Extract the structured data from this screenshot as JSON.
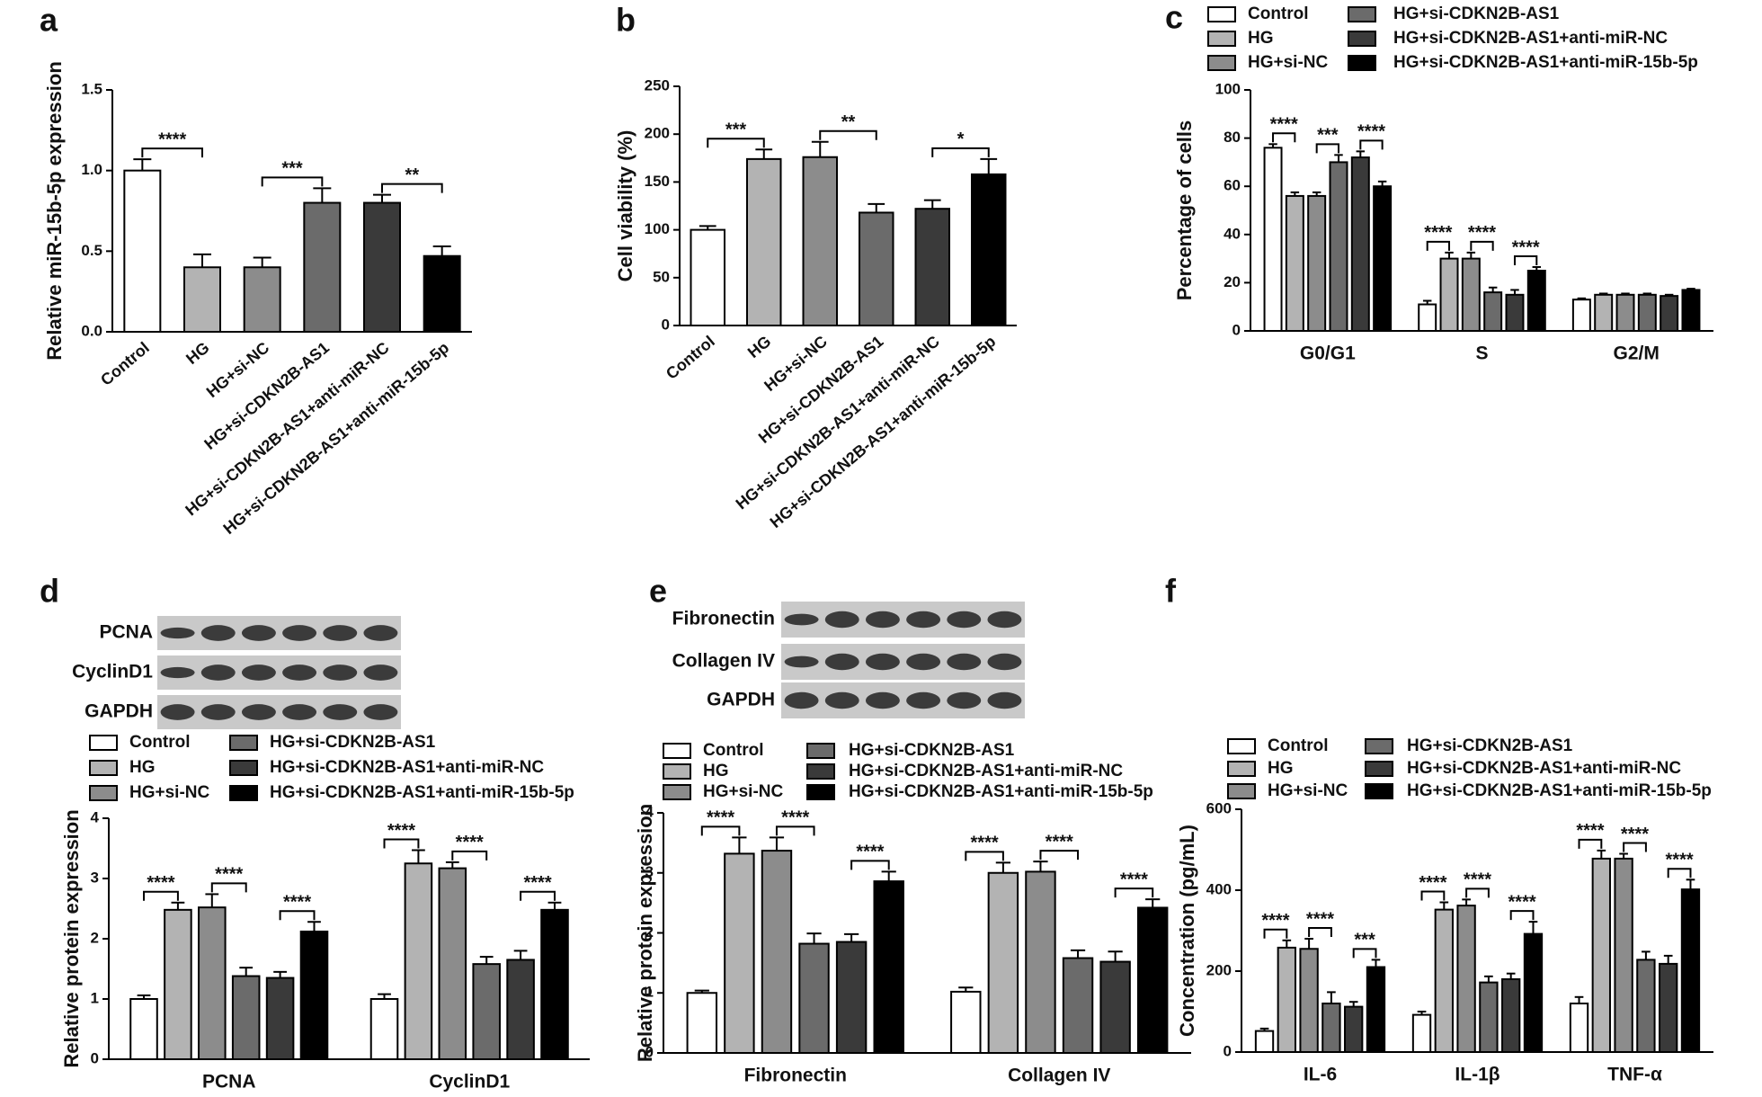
{
  "chart_data": [
    {
      "type": "bar",
      "panel": "a",
      "y_label": "Relative miR-15b-5p expression",
      "categories": [
        "Control",
        "HG",
        "HG+si-NC",
        "HG+si-CDKN2B-AS1",
        "HG+si-CDKN2B-AS1+anti-miR-NC",
        "HG+si-CDKN2B-AS1+anti-miR-15b-5p"
      ],
      "values": [
        1.0,
        0.4,
        0.4,
        0.8,
        0.8,
        0.47
      ],
      "errors": [
        0.07,
        0.08,
        0.06,
        0.09,
        0.05,
        0.06
      ],
      "colors": [
        "#ffffff",
        "#b3b3b3",
        "#8c8c8c",
        "#6b6b6b",
        "#3a3a3a",
        "#000000"
      ],
      "edgecolor": "#000000",
      "ylim": [
        0,
        1.5
      ],
      "yticks": [
        {
          "value": 0,
          "label": "0.0"
        },
        {
          "value": 0.5,
          "label": "0.5"
        },
        {
          "value": 1,
          "label": "1.0"
        },
        {
          "value": 1.5,
          "label": "1.5"
        }
      ],
      "annotations": [
        {
          "between": [
            0,
            1
          ],
          "text": "****"
        },
        {
          "between": [
            2,
            3
          ],
          "text": "***"
        },
        {
          "between": [
            4,
            5
          ],
          "text": "**"
        }
      ]
    },
    {
      "type": "bar",
      "panel": "b",
      "y_label": "Cell viability (%)",
      "categories": [
        "Control",
        "HG",
        "HG+si-NC",
        "HG+si-CDKN2B-AS1",
        "HG+si-CDKN2B-AS1+anti-miR-NC",
        "HG+si-CDKN2B-AS1+anti-miR-15b-5p"
      ],
      "values": [
        100,
        174,
        176,
        118,
        122,
        158
      ],
      "errors": [
        4,
        10,
        16,
        9,
        9,
        16
      ],
      "colors": [
        "#ffffff",
        "#b3b3b3",
        "#8c8c8c",
        "#6b6b6b",
        "#3a3a3a",
        "#000000"
      ],
      "edgecolor": "#000000",
      "ylim": [
        0,
        250
      ],
      "yticks": [
        0,
        50,
        100,
        150,
        200,
        250
      ],
      "annotations": [
        {
          "between": [
            0,
            1
          ],
          "text": "***"
        },
        {
          "between": [
            2,
            3
          ],
          "text": "**"
        },
        {
          "between": [
            4,
            5
          ],
          "text": "*"
        }
      ]
    },
    {
      "type": "bar",
      "panel": "c",
      "y_label": "Percentage of cells",
      "categories": [
        "G0/G1",
        "S",
        "G2/M"
      ],
      "series": [
        {
          "name": "Control",
          "color": "#ffffff",
          "values": [
            76,
            11,
            13
          ],
          "errors": [
            1.5,
            1.5,
            0.5
          ]
        },
        {
          "name": "HG",
          "color": "#b3b3b3",
          "values": [
            56,
            30,
            15
          ],
          "errors": [
            1.5,
            2.5,
            0.5
          ]
        },
        {
          "name": "HG+si-NC",
          "color": "#8c8c8c",
          "values": [
            56,
            30,
            15
          ],
          "errors": [
            1.5,
            2.5,
            0.5
          ]
        },
        {
          "name": "HG+si-CDKN2B-AS1",
          "color": "#6b6b6b",
          "values": [
            70,
            16,
            15
          ],
          "errors": [
            3,
            2,
            0.5
          ]
        },
        {
          "name": "HG+si-CDKN2B-AS1+anti-miR-NC",
          "color": "#3a3a3a",
          "values": [
            72,
            15,
            14.5
          ],
          "errors": [
            2.5,
            2,
            0.5
          ]
        },
        {
          "name": "HG+si-CDKN2B-AS1+anti-miR-15b-5p",
          "color": "#000000",
          "values": [
            60,
            25,
            17
          ],
          "errors": [
            2,
            1.5,
            0.5
          ]
        }
      ],
      "edgecolor": "#000000",
      "ylim": [
        0,
        100
      ],
      "yticks": [
        0,
        20,
        40,
        60,
        80,
        100
      ],
      "annotations": [
        {
          "group": 0,
          "between": [
            0,
            1
          ],
          "text": "****"
        },
        {
          "group": 0,
          "between": [
            2,
            3
          ],
          "text": "***"
        },
        {
          "group": 0,
          "between": [
            4,
            5
          ],
          "text": "****"
        },
        {
          "group": 1,
          "between": [
            0,
            1
          ],
          "text": "****"
        },
        {
          "group": 1,
          "between": [
            2,
            3
          ],
          "text": "****"
        },
        {
          "group": 1,
          "between": [
            4,
            5
          ],
          "text": "****"
        }
      ]
    },
    {
      "type": "bar",
      "panel": "d",
      "y_label": "Relative protein expression",
      "blot_labels": [
        "PCNA",
        "CyclinD1",
        "GAPDH"
      ],
      "categories": [
        "PCNA",
        "CyclinD1"
      ],
      "series": [
        {
          "name": "Control",
          "color": "#ffffff",
          "values": [
            1.0,
            1.0
          ],
          "errors": [
            0.06,
            0.08
          ]
        },
        {
          "name": "HG",
          "color": "#b3b3b3",
          "values": [
            2.48,
            3.25
          ],
          "errors": [
            0.12,
            0.22
          ]
        },
        {
          "name": "HG+si-NC",
          "color": "#8c8c8c",
          "values": [
            2.52,
            3.17
          ],
          "errors": [
            0.22,
            0.1
          ]
        },
        {
          "name": "HG+si-CDKN2B-AS1",
          "color": "#6b6b6b",
          "values": [
            1.38,
            1.58
          ],
          "errors": [
            0.14,
            0.12
          ]
        },
        {
          "name": "HG+si-CDKN2B-AS1+anti-miR-NC",
          "color": "#3a3a3a",
          "values": [
            1.35,
            1.65
          ],
          "errors": [
            0.1,
            0.15
          ]
        },
        {
          "name": "HG+si-CDKN2B-AS1+anti-miR-15b-5p",
          "color": "#000000",
          "values": [
            2.12,
            2.48
          ],
          "errors": [
            0.16,
            0.12
          ]
        }
      ],
      "edgecolor": "#000000",
      "ylim": [
        0,
        4
      ],
      "yticks": [
        0,
        1,
        2,
        3,
        4
      ],
      "annotations": [
        {
          "group": 0,
          "between": [
            0,
            1
          ],
          "text": "****"
        },
        {
          "group": 0,
          "between": [
            2,
            3
          ],
          "text": "****"
        },
        {
          "group": 0,
          "between": [
            4,
            5
          ],
          "text": "****"
        },
        {
          "group": 1,
          "between": [
            0,
            1
          ],
          "text": "****"
        },
        {
          "group": 1,
          "between": [
            2,
            3
          ],
          "text": "****"
        },
        {
          "group": 1,
          "between": [
            4,
            5
          ],
          "text": "****"
        }
      ]
    },
    {
      "type": "bar",
      "panel": "e",
      "y_label": "Relative protein expression",
      "blot_labels": [
        "Fibronectin",
        "Collagen IV",
        "GAPDH"
      ],
      "categories": [
        "Fibronectin",
        "Collagen IV"
      ],
      "series": [
        {
          "name": "Control",
          "color": "#ffffff",
          "values": [
            1.0,
            1.02
          ],
          "errors": [
            0.04,
            0.07
          ]
        },
        {
          "name": "HG",
          "color": "#b3b3b3",
          "values": [
            3.32,
            3.0
          ],
          "errors": [
            0.27,
            0.17
          ]
        },
        {
          "name": "HG+si-NC",
          "color": "#8c8c8c",
          "values": [
            3.37,
            3.02
          ],
          "errors": [
            0.22,
            0.17
          ]
        },
        {
          "name": "HG+si-CDKN2B-AS1",
          "color": "#6b6b6b",
          "values": [
            1.82,
            1.58
          ],
          "errors": [
            0.17,
            0.13
          ]
        },
        {
          "name": "HG+si-CDKN2B-AS1+anti-miR-NC",
          "color": "#3a3a3a",
          "values": [
            1.85,
            1.52
          ],
          "errors": [
            0.13,
            0.17
          ]
        },
        {
          "name": "HG+si-CDKN2B-AS1+anti-miR-15b-5p",
          "color": "#000000",
          "values": [
            2.86,
            2.42
          ],
          "errors": [
            0.16,
            0.14
          ]
        }
      ],
      "edgecolor": "#000000",
      "ylim": [
        0,
        4
      ],
      "yticks": [
        0,
        1,
        2,
        3,
        4
      ],
      "annotations": [
        {
          "group": 0,
          "between": [
            0,
            1
          ],
          "text": "****"
        },
        {
          "group": 0,
          "between": [
            2,
            3
          ],
          "text": "****"
        },
        {
          "group": 0,
          "between": [
            4,
            5
          ],
          "text": "****"
        },
        {
          "group": 1,
          "between": [
            0,
            1
          ],
          "text": "****"
        },
        {
          "group": 1,
          "between": [
            2,
            3
          ],
          "text": "****"
        },
        {
          "group": 1,
          "between": [
            4,
            5
          ],
          "text": "****"
        }
      ]
    },
    {
      "type": "bar",
      "panel": "f",
      "y_label": "Concentration (pg/mL)",
      "categories": [
        "IL-6",
        "IL-1β",
        "TNF-α"
      ],
      "series": [
        {
          "name": "Control",
          "color": "#ffffff",
          "values": [
            52,
            92,
            120
          ],
          "errors": [
            6,
            8,
            16
          ]
        },
        {
          "name": "HG",
          "color": "#b3b3b3",
          "values": [
            258,
            352,
            478
          ],
          "errors": [
            18,
            18,
            20
          ]
        },
        {
          "name": "HG+si-NC",
          "color": "#8c8c8c",
          "values": [
            255,
            362,
            478
          ],
          "errors": [
            25,
            15,
            12
          ]
        },
        {
          "name": "HG+si-CDKN2B-AS1",
          "color": "#6b6b6b",
          "values": [
            120,
            172,
            228
          ],
          "errors": [
            28,
            15,
            20
          ]
        },
        {
          "name": "HG+si-CDKN2B-AS1+anti-miR-NC",
          "color": "#3a3a3a",
          "values": [
            112,
            180,
            218
          ],
          "errors": [
            12,
            14,
            20
          ]
        },
        {
          "name": "HG+si-CDKN2B-AS1+anti-miR-15b-5p",
          "color": "#000000",
          "values": [
            210,
            292,
            402
          ],
          "errors": [
            18,
            30,
            24
          ]
        }
      ],
      "edgecolor": "#000000",
      "ylim": [
        0,
        600
      ],
      "yticks": [
        0,
        200,
        400,
        600
      ],
      "annotations": [
        {
          "group": 0,
          "between": [
            0,
            1
          ],
          "text": "****"
        },
        {
          "group": 0,
          "between": [
            2,
            3
          ],
          "text": "****"
        },
        {
          "group": 0,
          "between": [
            4,
            5
          ],
          "text": "***"
        },
        {
          "group": 1,
          "between": [
            0,
            1
          ],
          "text": "****"
        },
        {
          "group": 1,
          "between": [
            2,
            3
          ],
          "text": "****"
        },
        {
          "group": 1,
          "between": [
            4,
            5
          ],
          "text": "****"
        },
        {
          "group": 2,
          "between": [
            0,
            1
          ],
          "text": "****"
        },
        {
          "group": 2,
          "between": [
            2,
            3
          ],
          "text": "****"
        },
        {
          "group": 2,
          "between": [
            4,
            5
          ],
          "text": "****"
        }
      ]
    }
  ]
}
